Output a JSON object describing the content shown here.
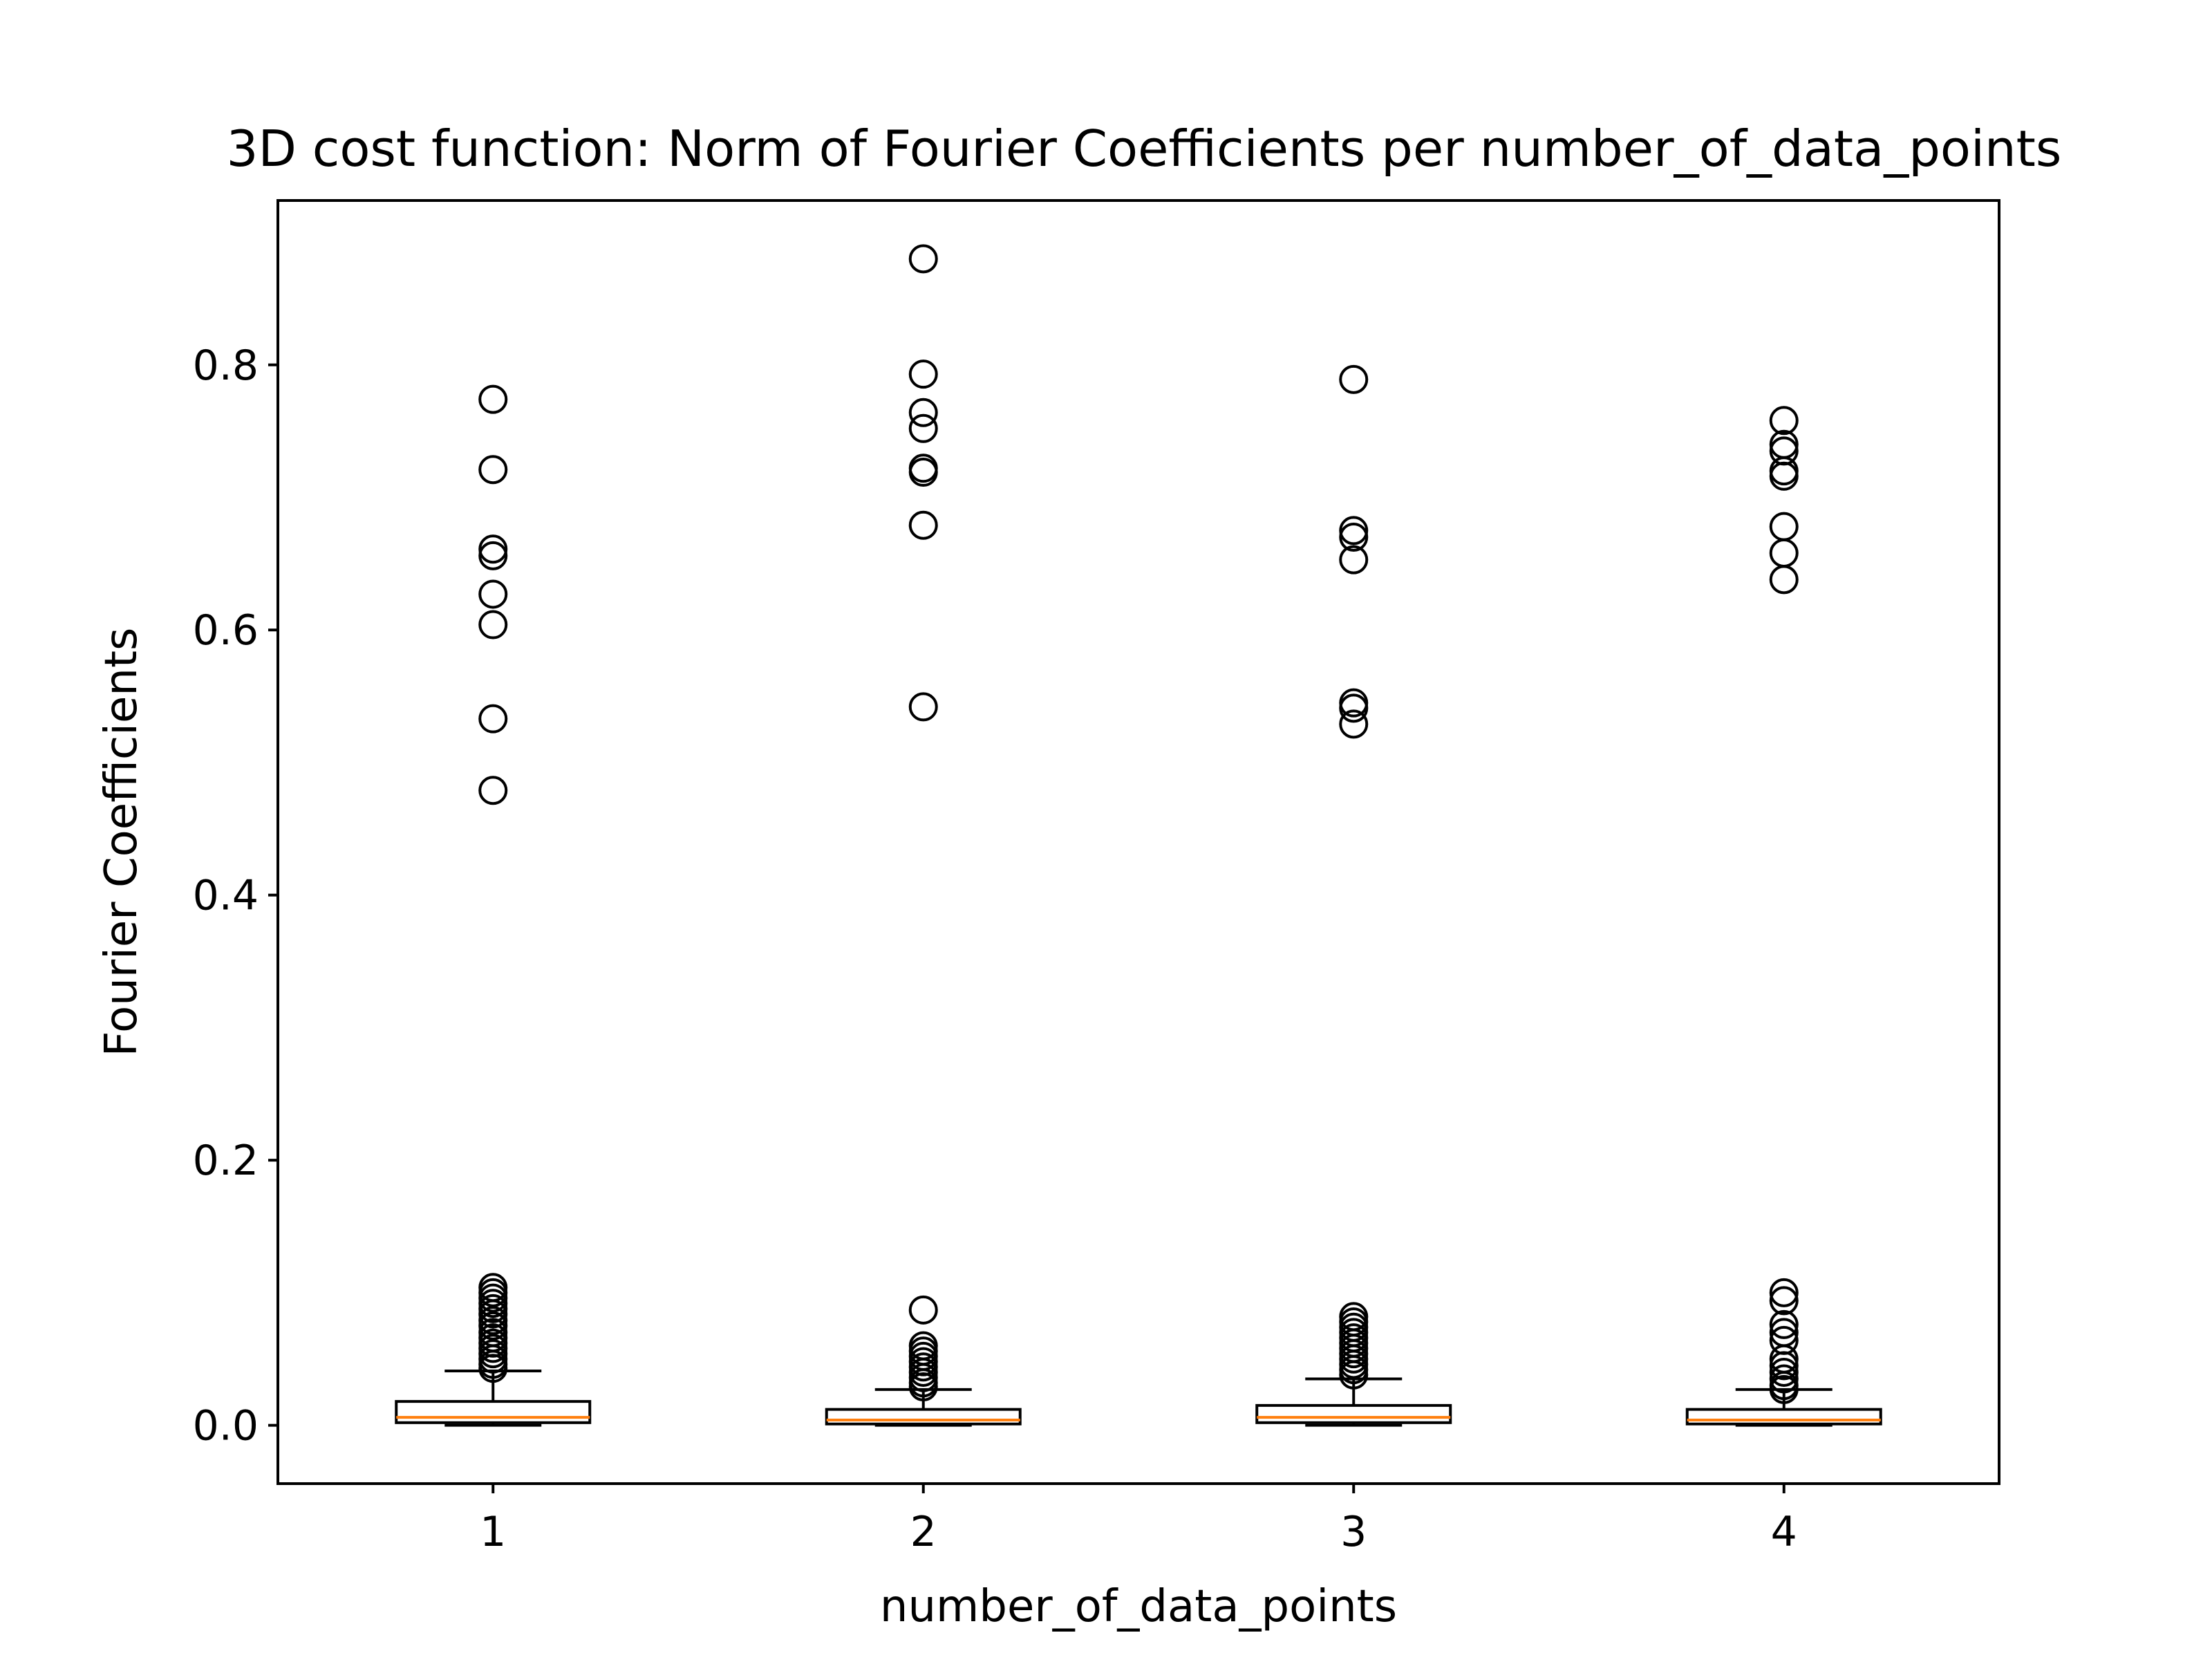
{
  "chart_data": {
    "type": "box",
    "title": "3D cost function: Norm of Fourier Coefficients per number_of_data_points",
    "xlabel": "number_of_data_points",
    "ylabel": "Fourier Coefficients",
    "xlim": [
      0.5,
      4.5
    ],
    "ylim": [
      -0.044,
      0.924
    ],
    "y_ticks": [
      "0.0",
      "0.2",
      "0.4",
      "0.6",
      "0.8"
    ],
    "y_tick_values": [
      0.0,
      0.2,
      0.4,
      0.6,
      0.8
    ],
    "x_ticks": [
      "1",
      "2",
      "3",
      "4"
    ],
    "x_tick_values": [
      1,
      2,
      3,
      4
    ],
    "grid": false,
    "colors": {
      "box_edge": "#000000",
      "median": "#ff7f0e",
      "flier": "#000000",
      "background": "#ffffff"
    },
    "boxes": [
      {
        "category": "1",
        "whisker_low": 0.0,
        "q1": 0.002,
        "median": 0.006,
        "q3": 0.018,
        "whisker_high": 0.041,
        "fliers": [
          0.774,
          0.721,
          0.661,
          0.656,
          0.627,
          0.604,
          0.533,
          0.479,
          0.104,
          0.1,
          0.096,
          0.092,
          0.088,
          0.084,
          0.079,
          0.075,
          0.07,
          0.066,
          0.062,
          0.058,
          0.054,
          0.05,
          0.046,
          0.043
        ]
      },
      {
        "category": "2",
        "whisker_low": 0.0,
        "q1": 0.001,
        "median": 0.004,
        "q3": 0.012,
        "whisker_high": 0.027,
        "fliers": [
          0.88,
          0.793,
          0.764,
          0.752,
          0.722,
          0.719,
          0.679,
          0.542,
          0.087,
          0.06,
          0.056,
          0.052,
          0.048,
          0.044,
          0.04,
          0.036,
          0.032,
          0.029
        ]
      },
      {
        "category": "3",
        "whisker_low": 0.0,
        "q1": 0.002,
        "median": 0.006,
        "q3": 0.015,
        "whisker_high": 0.035,
        "fliers": [
          0.789,
          0.675,
          0.67,
          0.653,
          0.545,
          0.541,
          0.529,
          0.082,
          0.078,
          0.074,
          0.07,
          0.066,
          0.062,
          0.058,
          0.054,
          0.05,
          0.046,
          0.042,
          0.038
        ]
      },
      {
        "category": "4",
        "whisker_low": 0.0,
        "q1": 0.001,
        "median": 0.004,
        "q3": 0.012,
        "whisker_high": 0.027,
        "fliers": [
          0.758,
          0.74,
          0.735,
          0.72,
          0.716,
          0.678,
          0.658,
          0.638,
          0.1,
          0.094,
          0.076,
          0.07,
          0.064,
          0.05,
          0.045,
          0.04,
          0.035,
          0.03,
          0.027
        ]
      }
    ]
  }
}
